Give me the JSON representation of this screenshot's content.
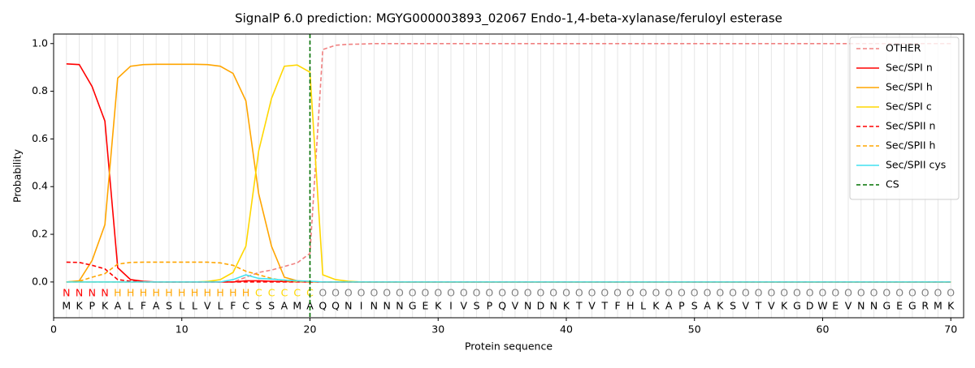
{
  "chart_data": {
    "type": "line",
    "title": "SignalP 6.0 prediction: MGYG000003893_02067 Endo-1,4-beta-xylanase/feruloyl esterase",
    "xlabel": "Protein sequence",
    "ylabel": "Probability",
    "xlim": [
      0,
      71
    ],
    "ylim": [
      -0.15,
      1.04
    ],
    "xticks": [
      0,
      10,
      20,
      30,
      40,
      50,
      60,
      70
    ],
    "yticks": [
      {
        "value": 0,
        "label": "0.0"
      },
      0.2,
      0.4,
      0.6,
      0.8,
      {
        "value": 1,
        "label": "1.0"
      }
    ],
    "grid_x": true,
    "legend": "upper right",
    "x": [
      1,
      2,
      3,
      4,
      5,
      6,
      7,
      8,
      9,
      10,
      11,
      12,
      13,
      14,
      15,
      16,
      17,
      18,
      19,
      20,
      21,
      22,
      23,
      24,
      25,
      26,
      27,
      28,
      29,
      30,
      31,
      32,
      33,
      34,
      35,
      36,
      37,
      38,
      39,
      40,
      41,
      42,
      43,
      44,
      45,
      46,
      47,
      48,
      49,
      50,
      51,
      52,
      53,
      54,
      55,
      56,
      57,
      58,
      59,
      60,
      61,
      62,
      63,
      64,
      65,
      66,
      67,
      68,
      69,
      70
    ],
    "residues": [
      "M",
      "K",
      "P",
      "K",
      "A",
      "L",
      "F",
      "A",
      "S",
      "L",
      "L",
      "V",
      "L",
      "F",
      "C",
      "S",
      "S",
      "A",
      "M",
      "A",
      "Q",
      "Q",
      "N",
      "I",
      "N",
      "N",
      "N",
      "G",
      "E",
      "K",
      "I",
      "V",
      "S",
      "P",
      "Q",
      "V",
      "N",
      "D",
      "N",
      "K",
      "T",
      "V",
      "T",
      "F",
      "H",
      "L",
      "K",
      "A",
      "P",
      "S",
      "A",
      "K",
      "S",
      "V",
      "T",
      "V",
      "K",
      "G",
      "D",
      "W",
      "E",
      "V",
      "N",
      "N",
      "G",
      "E",
      "G",
      "R",
      "M",
      "K"
    ],
    "regions": [
      "N",
      "N",
      "N",
      "N",
      "H",
      "H",
      "H",
      "H",
      "H",
      "H",
      "H",
      "H",
      "H",
      "H",
      "H",
      "C",
      "C",
      "C",
      "C",
      "C",
      "O",
      "O",
      "O",
      "O",
      "O",
      "O",
      "O",
      "O",
      "O",
      "O",
      "O",
      "O",
      "O",
      "O",
      "O",
      "O",
      "O",
      "O",
      "O",
      "O",
      "O",
      "O",
      "O",
      "O",
      "O",
      "O",
      "O",
      "O",
      "O",
      "O",
      "O",
      "O",
      "O",
      "O",
      "O",
      "O",
      "O",
      "O",
      "O",
      "O",
      "O",
      "O",
      "O",
      "O",
      "O",
      "O",
      "O",
      "O",
      "O",
      "O"
    ],
    "region_colors": {
      "N": "#ff0000",
      "H": "#ffa500",
      "C": "#ffd700",
      "O": "#808080"
    },
    "series": [
      {
        "name": "OTHER",
        "color": "#f08080",
        "dash": true,
        "values": [
          0,
          0,
          0,
          0,
          0,
          0,
          0,
          0,
          0,
          0,
          0,
          0,
          0,
          0,
          0.02,
          0.04,
          0.05,
          0.065,
          0.08,
          0.12,
          0.975,
          0.993,
          0.997,
          0.998,
          1,
          1,
          1,
          1,
          1,
          1,
          1,
          1,
          1,
          1,
          1,
          1,
          1,
          1,
          1,
          1,
          1,
          1,
          1,
          1,
          1,
          1,
          1,
          1,
          1,
          1,
          1,
          1,
          1,
          1,
          1,
          1,
          1,
          1,
          1,
          1,
          1,
          1,
          1,
          1,
          1,
          1,
          1,
          1,
          1,
          1
        ]
      },
      {
        "name": "Sec/SPI n",
        "color": "#ff0000",
        "dash": false,
        "values": [
          0.915,
          0.912,
          0.82,
          0.675,
          0.06,
          0.01,
          0.003,
          0,
          0,
          0,
          0,
          0,
          0,
          0,
          0.005,
          0.005,
          0.003,
          0.002,
          0.001,
          0,
          0,
          0,
          0,
          0,
          0,
          0,
          0,
          0,
          0,
          0,
          0,
          0,
          0,
          0,
          0,
          0,
          0,
          0,
          0,
          0,
          0,
          0,
          0,
          0,
          0,
          0,
          0,
          0,
          0,
          0,
          0,
          0,
          0,
          0,
          0,
          0,
          0,
          0,
          0,
          0,
          0,
          0,
          0,
          0,
          0,
          0,
          0,
          0,
          0,
          0
        ]
      },
      {
        "name": "Sec/SPI h",
        "color": "#ffa500",
        "dash": false,
        "values": [
          0,
          0.005,
          0.09,
          0.24,
          0.855,
          0.905,
          0.912,
          0.913,
          0.913,
          0.913,
          0.913,
          0.912,
          0.905,
          0.875,
          0.76,
          0.37,
          0.15,
          0.02,
          0.005,
          0.002,
          0,
          0,
          0,
          0,
          0,
          0,
          0,
          0,
          0,
          0,
          0,
          0,
          0,
          0,
          0,
          0,
          0,
          0,
          0,
          0,
          0,
          0,
          0,
          0,
          0,
          0,
          0,
          0,
          0,
          0,
          0,
          0,
          0,
          0,
          0,
          0,
          0,
          0,
          0,
          0,
          0,
          0,
          0,
          0,
          0,
          0,
          0,
          0,
          0,
          0
        ]
      },
      {
        "name": "Sec/SPI c",
        "color": "#ffd700",
        "dash": false,
        "values": [
          0,
          0,
          0,
          0,
          0,
          0,
          0,
          0,
          0,
          0,
          0,
          0.002,
          0.01,
          0.04,
          0.15,
          0.55,
          0.77,
          0.905,
          0.91,
          0.88,
          0.03,
          0.01,
          0.003,
          0,
          0,
          0,
          0,
          0,
          0,
          0,
          0,
          0,
          0,
          0,
          0,
          0,
          0,
          0,
          0,
          0,
          0,
          0,
          0,
          0,
          0,
          0,
          0,
          0,
          0,
          0,
          0,
          0,
          0,
          0,
          0,
          0,
          0,
          0,
          0,
          0,
          0,
          0,
          0,
          0,
          0,
          0,
          0,
          0,
          0,
          0
        ]
      },
      {
        "name": "Sec/SPII n",
        "color": "#ff0000",
        "dash": true,
        "values": [
          0.083,
          0.082,
          0.07,
          0.055,
          0.01,
          0.003,
          0,
          0,
          0,
          0,
          0,
          0,
          0,
          0,
          0,
          0,
          0,
          0,
          0,
          0,
          0,
          0,
          0,
          0,
          0,
          0,
          0,
          0,
          0,
          0,
          0,
          0,
          0,
          0,
          0,
          0,
          0,
          0,
          0,
          0,
          0,
          0,
          0,
          0,
          0,
          0,
          0,
          0,
          0,
          0,
          0,
          0,
          0,
          0,
          0,
          0,
          0,
          0,
          0,
          0,
          0,
          0,
          0,
          0,
          0,
          0,
          0,
          0,
          0,
          0
        ]
      },
      {
        "name": "Sec/SPII h",
        "color": "#ffa500",
        "dash": true,
        "values": [
          0,
          0.003,
          0.02,
          0.035,
          0.075,
          0.082,
          0.083,
          0.083,
          0.083,
          0.083,
          0.083,
          0.083,
          0.08,
          0.07,
          0.045,
          0.03,
          0.015,
          0.005,
          0.002,
          0.001,
          0,
          0,
          0,
          0,
          0,
          0,
          0,
          0,
          0,
          0,
          0,
          0,
          0,
          0,
          0,
          0,
          0,
          0,
          0,
          0,
          0,
          0,
          0,
          0,
          0,
          0,
          0,
          0,
          0,
          0,
          0,
          0,
          0,
          0,
          0,
          0,
          0,
          0,
          0,
          0,
          0,
          0,
          0,
          0,
          0,
          0,
          0,
          0,
          0,
          0
        ]
      },
      {
        "name": "Sec/SPII cys",
        "color": "#40e0f0",
        "dash": false,
        "values": [
          0,
          0,
          0,
          0,
          0,
          0,
          0,
          0,
          0,
          0,
          0,
          0,
          0,
          0.01,
          0.03,
          0.015,
          0.012,
          0.008,
          0.005,
          0.003,
          0,
          0,
          0,
          0,
          0,
          0,
          0,
          0,
          0,
          0,
          0,
          0,
          0,
          0,
          0,
          0,
          0,
          0,
          0,
          0,
          0,
          0,
          0,
          0,
          0,
          0,
          0,
          0,
          0,
          0,
          0,
          0,
          0,
          0,
          0,
          0,
          0,
          0,
          0,
          0,
          0,
          0,
          0,
          0,
          0,
          0,
          0,
          0,
          0,
          0
        ]
      }
    ],
    "cs": {
      "name": "CS",
      "x": 20,
      "color": "#007000"
    }
  }
}
